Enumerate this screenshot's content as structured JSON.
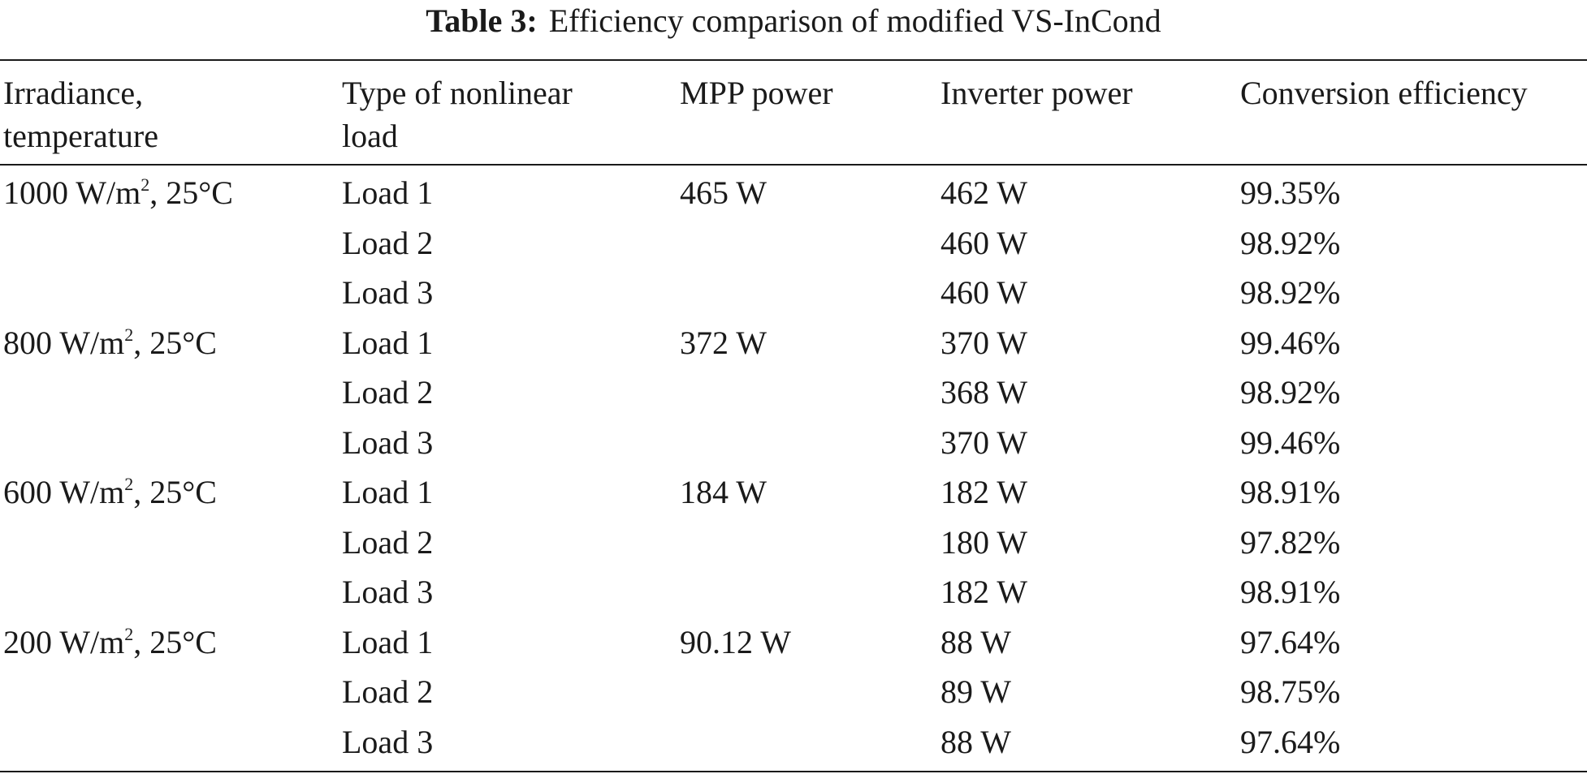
{
  "caption": {
    "label": "Table 3:",
    "text": "Efficiency comparison of modified VS-InCond"
  },
  "headers": [
    "Irradiance,\ntemperature",
    "Type of nonlinear\nload",
    "MPP power",
    "Inverter power",
    "Conversion efficiency"
  ],
  "groups": [
    {
      "irradiance": "1000 W/m",
      "irradiance_sup": "2",
      "irradiance_tail": ", 25°C",
      "mpp": "465 W",
      "rows": [
        {
          "load": "Load 1",
          "inverter": "462 W",
          "efficiency": "99.35%"
        },
        {
          "load": "Load 2",
          "inverter": "460 W",
          "efficiency": "98.92%"
        },
        {
          "load": "Load 3",
          "inverter": "460 W",
          "efficiency": "98.92%"
        }
      ]
    },
    {
      "irradiance": "800 W/m",
      "irradiance_sup": "2",
      "irradiance_tail": ", 25°C",
      "mpp": "372 W",
      "rows": [
        {
          "load": "Load 1",
          "inverter": "370 W",
          "efficiency": "99.46%"
        },
        {
          "load": "Load 2",
          "inverter": "368 W",
          "efficiency": "98.92%"
        },
        {
          "load": "Load 3",
          "inverter": "370 W",
          "efficiency": "99.46%"
        }
      ]
    },
    {
      "irradiance": "600 W/m",
      "irradiance_sup": "2",
      "irradiance_tail": ", 25°C",
      "mpp": "184 W",
      "rows": [
        {
          "load": "Load 1",
          "inverter": "182 W",
          "efficiency": "98.91%"
        },
        {
          "load": "Load 2",
          "inverter": "180 W",
          "efficiency": "97.82%"
        },
        {
          "load": "Load 3",
          "inverter": "182 W",
          "efficiency": "98.91%"
        }
      ]
    },
    {
      "irradiance": "200 W/m",
      "irradiance_sup": "2",
      "irradiance_tail": ", 25°C",
      "mpp": "90.12 W",
      "rows": [
        {
          "load": "Load 1",
          "inverter": "88 W",
          "efficiency": "97.64%"
        },
        {
          "load": "Load 2",
          "inverter": "89 W",
          "efficiency": "98.75%"
        },
        {
          "load": "Load 3",
          "inverter": "88 W",
          "efficiency": "97.64%"
        }
      ]
    }
  ]
}
